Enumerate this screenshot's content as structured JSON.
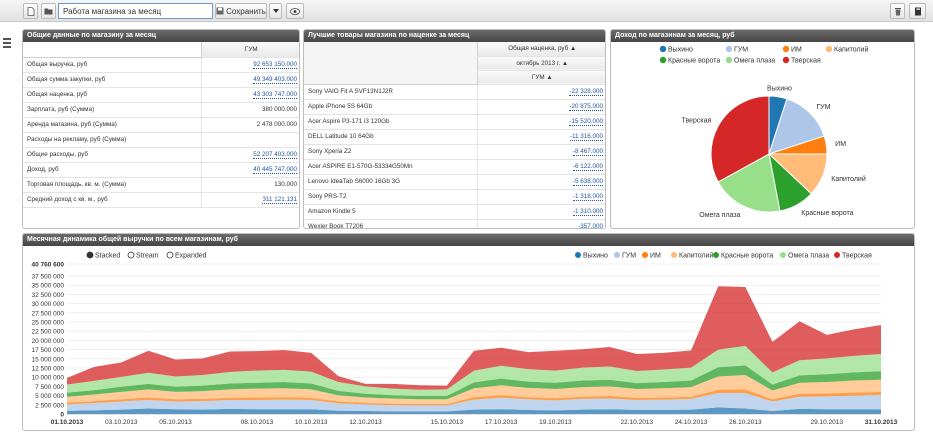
{
  "toolbar": {
    "title_value": "Работа магазина за месяц",
    "save_label": "Сохранить"
  },
  "panel1": {
    "title": "Общие данные по магазину за месяц",
    "column": "ГУМ",
    "rows": [
      {
        "label": "Общая выручка, руб",
        "value": "92 653 150.000",
        "link": true
      },
      {
        "label": "Общая сумма закупки, руб",
        "value": "49 349 403.000",
        "link": true
      },
      {
        "label": "Общая наценка, руб",
        "value": "43 303 747.000",
        "link": true
      },
      {
        "label": "Зарплата, руб (Сумма)",
        "value": "380 000.000",
        "link": false
      },
      {
        "label": "Аренда магазина, руб (Сумма)",
        "value": "2 478 000.000",
        "link": false
      },
      {
        "label": "Расходы на рекламу, руб (Сумма)",
        "value": "",
        "link": false
      },
      {
        "label": "Общие расходы, руб",
        "value": "52 207 403.000",
        "link": true
      },
      {
        "label": "Доход, руб",
        "value": "40 445 747.000",
        "link": true
      },
      {
        "label": "Торговая площадь, кв. м. (Сумма)",
        "value": "130.000",
        "link": false
      },
      {
        "label": "Средний доход с кв. м., руб",
        "value": "311 121.131",
        "link": true
      }
    ]
  },
  "panel2": {
    "title": "Лучшие товары магазина по наценке за месяц",
    "h1": "Общая наценка, руб ▲",
    "h2": "октябрь 2013 г. ▲",
    "h3": "ГУМ ▲",
    "rows": [
      {
        "label": "Sony VAIO Fit A SVF13N1J2R",
        "value": "-22 328.000"
      },
      {
        "label": "Apple iPhone 5S 64Gb",
        "value": "-20 875.000"
      },
      {
        "label": "Acer Aspire P3-171 i3 120Gb",
        "value": "-15 520.000"
      },
      {
        "label": "DELL Latitude 10 64Gb",
        "value": "-11 316.000"
      },
      {
        "label": "Sony Xperia Z2",
        "value": "-8 467.000"
      },
      {
        "label": "Acer ASPIRE E1-570G-53334G50Mn",
        "value": "-6 122.000"
      },
      {
        "label": "Lenovo IdeaTab S6000 16Gb 3G",
        "value": "-5 638.000"
      },
      {
        "label": "Sony PRS-T2",
        "value": "-1 318.000"
      },
      {
        "label": "Amazon Kindle 5",
        "value": "-1 310.000"
      },
      {
        "label": "Wexler Book T7206",
        "value": "-357.000"
      }
    ]
  },
  "panel3": {
    "title": "Доход по магазинам за месяц, руб"
  },
  "pie_data": {
    "type": "pie",
    "slices": [
      {
        "name": "Выхино",
        "value": 5,
        "color": "#1f77b4"
      },
      {
        "name": "ГУМ",
        "value": 15,
        "color": "#aec7e8"
      },
      {
        "name": "ИМ",
        "value": 5,
        "color": "#ff7f0e"
      },
      {
        "name": "Капитолий",
        "value": 12,
        "color": "#ffbb78"
      },
      {
        "name": "Красные ворота",
        "value": 10,
        "color": "#2ca02c"
      },
      {
        "name": "Омега плаза",
        "value": 20,
        "color": "#98df8a"
      },
      {
        "name": "Тверская",
        "value": 33,
        "color": "#d62728"
      }
    ]
  },
  "panel4": {
    "title": "Месячная динамика общей выручки по всем магазинам, руб",
    "modes": [
      "Stacked",
      "Stream",
      "Expanded"
    ],
    "active_mode": 0
  },
  "chart_data": {
    "type": "area",
    "x": [
      "01.10.2013",
      "02.10.2013",
      "03.10.2013",
      "04.10.2013",
      "05.10.2013",
      "06.10.2013",
      "07.10.2013",
      "08.10.2013",
      "09.10.2013",
      "10.10.2013",
      "11.10.2013",
      "12.10.2013",
      "13.10.2013",
      "14.10.2013",
      "15.10.2013",
      "16.10.2013",
      "17.10.2013",
      "18.10.2013",
      "19.10.2013",
      "20.10.2013",
      "21.10.2013",
      "22.10.2013",
      "23.10.2013",
      "24.10.2013",
      "25.10.2013",
      "26.10.2013",
      "27.10.2013",
      "28.10.2013",
      "29.10.2013",
      "30.10.2013",
      "31.10.2013"
    ],
    "xticks": [
      "01.10.2013",
      "03.10.2013",
      "05.10.2013",
      "08.10.2013",
      "10.10.2013",
      "12.10.2013",
      "15.10.2013",
      "17.10.2013",
      "19.10.2013",
      "22.10.2013",
      "24.10.2013",
      "26.10.2013",
      "29.10.2013",
      "31.10.2013"
    ],
    "yticks": [
      "0",
      "2 500 000",
      "5 000 000",
      "7 500 000",
      "10 000 000",
      "12 500 000",
      "15 000 000",
      "17 500 000",
      "20 000 000",
      "22 500 000",
      "25 000 000",
      "27 500 000",
      "30 000 000",
      "32 500 000",
      "35 000 000",
      "37 500 000",
      "40 760 600"
    ],
    "ylim": [
      0,
      40760600
    ],
    "series": [
      {
        "name": "Выхино",
        "color": "#1f77b4",
        "values": [
          900000,
          1000000,
          1200000,
          1500000,
          1300000,
          1200000,
          1400000,
          1300000,
          1300000,
          1300000,
          900000,
          800000,
          700000,
          700000,
          700000,
          1200000,
          1300000,
          1100000,
          1000000,
          1200000,
          1300000,
          1100000,
          1100000,
          1200000,
          1800000,
          1500000,
          800000,
          1400000,
          1300000,
          1300000,
          1300000
        ]
      },
      {
        "name": "ГУМ",
        "color": "#aec7e8",
        "values": [
          1700000,
          2000000,
          2200000,
          2300000,
          2100000,
          2300000,
          2400000,
          2500000,
          2600000,
          2500000,
          2000000,
          1800000,
          1700000,
          1600000,
          1600000,
          2700000,
          3100000,
          2900000,
          2700000,
          2900000,
          2900000,
          2700000,
          2800000,
          2900000,
          3900000,
          4200000,
          2600000,
          3300000,
          3500000,
          3700000,
          3900000
        ]
      },
      {
        "name": "ИМ",
        "color": "#ff7f0e",
        "values": [
          500000,
          500000,
          600000,
          700000,
          600000,
          600000,
          600000,
          700000,
          700000,
          600000,
          500000,
          400000,
          400000,
          400000,
          400000,
          700000,
          700000,
          600000,
          600000,
          600000,
          700000,
          600000,
          600000,
          600000,
          900000,
          1000000,
          600000,
          800000,
          800000,
          800000,
          800000
        ]
      },
      {
        "name": "Капитолий",
        "color": "#ffbb78",
        "values": [
          1600000,
          1800000,
          2000000,
          2200000,
          2000000,
          2100000,
          2300000,
          2400000,
          2400000,
          2300000,
          1700000,
          1500000,
          1400000,
          1300000,
          1300000,
          2400000,
          2700000,
          2500000,
          2500000,
          2600000,
          2600000,
          2400000,
          2500000,
          2600000,
          3600000,
          3900000,
          2400000,
          3000000,
          3100000,
          3300000,
          3300000
        ]
      },
      {
        "name": "Красные ворота",
        "color": "#2ca02c",
        "values": [
          1100000,
          1200000,
          1400000,
          1500000,
          1400000,
          1500000,
          1600000,
          1600000,
          1700000,
          1600000,
          1200000,
          1000000,
          900000,
          900000,
          900000,
          1600000,
          1800000,
          1700000,
          1700000,
          1800000,
          1800000,
          1600000,
          1700000,
          1800000,
          2500000,
          2600000,
          1600000,
          2000000,
          2100000,
          2200000,
          2300000
        ]
      },
      {
        "name": "Омега плаза",
        "color": "#98df8a",
        "values": [
          2200000,
          2500000,
          2700000,
          3000000,
          2800000,
          2900000,
          3100000,
          3300000,
          3300000,
          3200000,
          2400000,
          2000000,
          1800000,
          1700000,
          1800000,
          3200000,
          3500000,
          3400000,
          3300000,
          3500000,
          3600000,
          3300000,
          3400000,
          3500000,
          4800000,
          5300000,
          3300000,
          4100000,
          4300000,
          4500000,
          4700000
        ]
      },
      {
        "name": "Тверская",
        "color": "#d62728",
        "values": [
          1800000,
          3800000,
          3900000,
          6000000,
          4600000,
          4500000,
          5600000,
          5300000,
          5400000,
          5100000,
          1600000,
          700000,
          1300000,
          1200000,
          1000000,
          5400000,
          4900000,
          4600000,
          5400000,
          5000000,
          5300000,
          4600000,
          4500000,
          4700000,
          17200000,
          16000000,
          8300000,
          10600000,
          6400000,
          7200000,
          7900000
        ]
      }
    ]
  }
}
